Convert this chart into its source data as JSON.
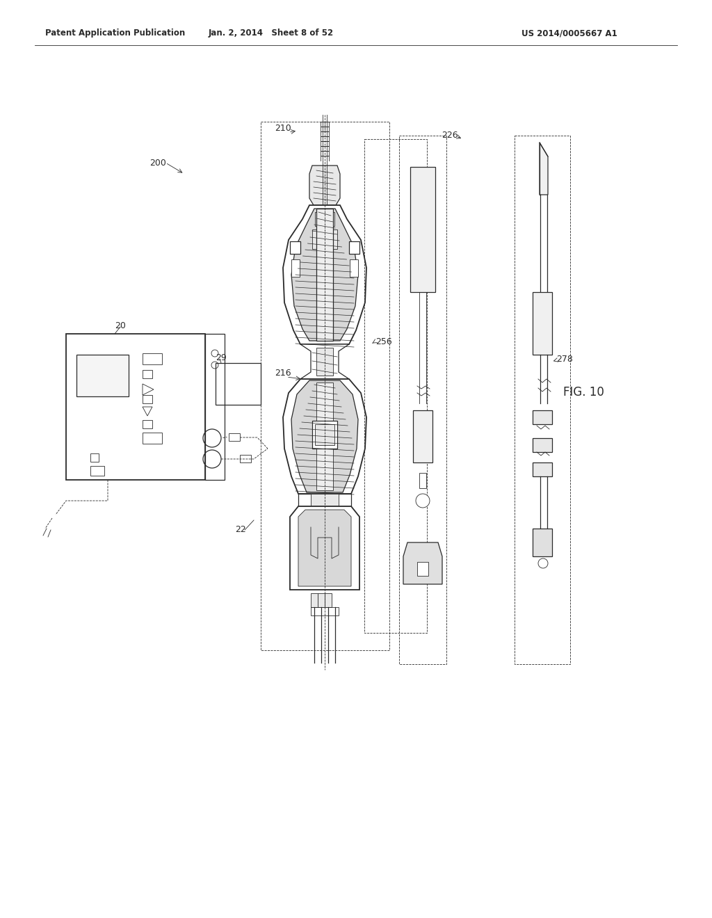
{
  "bg_color": "#ffffff",
  "line_color": "#2a2a2a",
  "header_left": "Patent Application Publication",
  "header_center": "Jan. 2, 2014   Sheet 8 of 52",
  "header_right": "US 2014/0005667 A1",
  "fig_label": "FIG. 10",
  "fig_number": "10"
}
